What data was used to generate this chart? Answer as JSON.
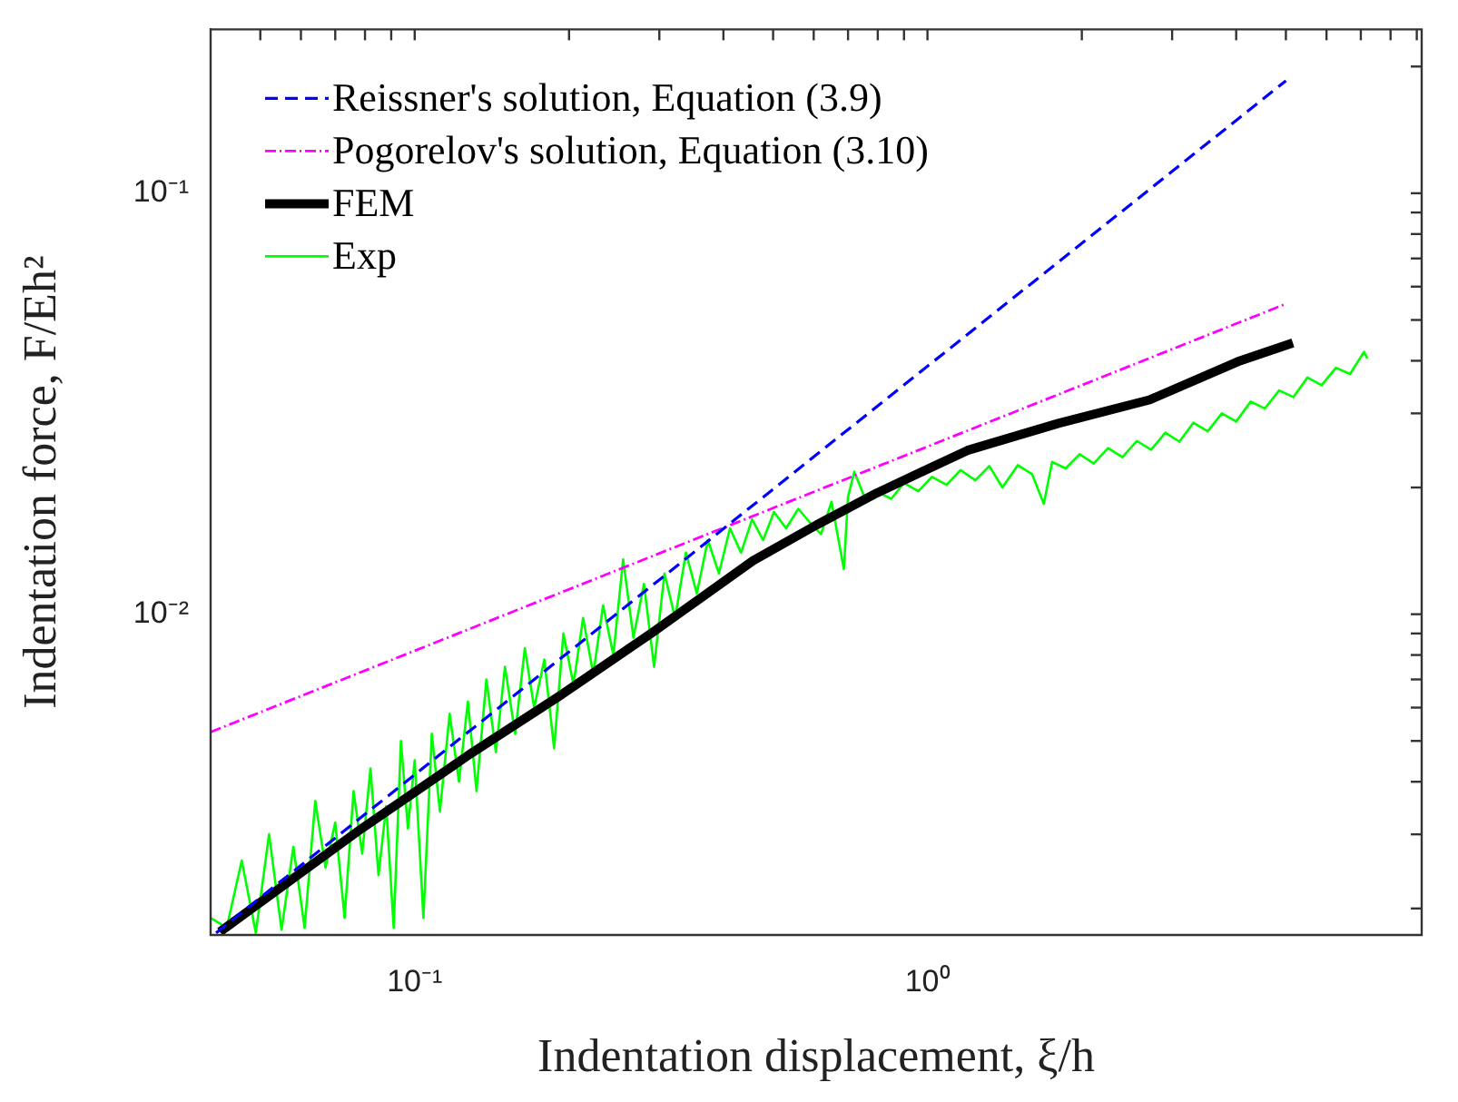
{
  "chart_data": {
    "type": "line",
    "xlabel": "Indentation displacement, ξ/h",
    "ylabel": "Indentation force, F/Eh²",
    "log": "xy",
    "grid": false,
    "legend": "top left",
    "marker": "none",
    "xlim": [
      0.04,
      9.2
    ],
    "ylim": [
      0.00173,
      0.245
    ],
    "xticks": [
      {
        "value": 0.05,
        "label": null
      },
      {
        "value": 0.06,
        "label": null
      },
      {
        "value": 0.07,
        "label": null
      },
      {
        "value": 0.08,
        "label": null
      },
      {
        "value": 0.09,
        "label": null
      },
      {
        "value": 0.1,
        "label": "10⁻¹"
      },
      {
        "value": 0.2,
        "label": null
      },
      {
        "value": 0.3,
        "label": null
      },
      {
        "value": 0.4,
        "label": null
      },
      {
        "value": 0.5,
        "label": null
      },
      {
        "value": 0.6,
        "label": null
      },
      {
        "value": 0.7,
        "label": null
      },
      {
        "value": 0.8,
        "label": null
      },
      {
        "value": 0.9,
        "label": null
      },
      {
        "value": 1,
        "label": "10⁰"
      },
      {
        "value": 2,
        "label": null
      },
      {
        "value": 3,
        "label": null
      },
      {
        "value": 4,
        "label": null
      },
      {
        "value": 5,
        "label": null
      },
      {
        "value": 6,
        "label": null
      },
      {
        "value": 7,
        "label": null
      },
      {
        "value": 8,
        "label": null
      },
      {
        "value": 9,
        "label": null
      }
    ],
    "yticks": [
      {
        "value": 0.002,
        "label": null
      },
      {
        "value": 0.003,
        "label": null
      },
      {
        "value": 0.004,
        "label": null
      },
      {
        "value": 0.005,
        "label": null
      },
      {
        "value": 0.006,
        "label": null
      },
      {
        "value": 0.007,
        "label": null
      },
      {
        "value": 0.008,
        "label": null
      },
      {
        "value": 0.009,
        "label": null
      },
      {
        "value": 0.01,
        "label": "10⁻²"
      },
      {
        "value": 0.02,
        "label": null
      },
      {
        "value": 0.03,
        "label": null
      },
      {
        "value": 0.04,
        "label": null
      },
      {
        "value": 0.05,
        "label": null
      },
      {
        "value": 0.06,
        "label": null
      },
      {
        "value": 0.07,
        "label": null
      },
      {
        "value": 0.08,
        "label": null
      },
      {
        "value": 0.09,
        "label": null
      },
      {
        "value": 0.1,
        "label": "10⁻¹"
      },
      {
        "value": 0.2,
        "label": null
      }
    ],
    "series": [
      {
        "name": "Reissner's solution, Equation (3.9)",
        "color": "#0000ff",
        "line_style": "dashed",
        "x": [
          0.041,
          5.0
        ],
        "values": [
          0.00175,
          0.185
        ]
      },
      {
        "name": "Pogorelov's solution, Equation (3.10)",
        "color": "#ff00ff",
        "line_style": "dashdot",
        "x": [
          0.04,
          5.0
        ],
        "values": [
          0.00525,
          0.0546
        ]
      },
      {
        "name": "FEM",
        "color": "#000000",
        "line_style": "solid",
        "x": [
          0.0417,
          0.0789,
          0.1288,
          0.1937,
          0.2915,
          0.457,
          0.608,
          0.796,
          1.197,
          1.8,
          2.71,
          4.07,
          5.16
        ],
        "values": [
          0.00176,
          0.0031,
          0.00467,
          0.00645,
          0.00907,
          0.0134,
          0.0163,
          0.0194,
          0.0245,
          0.0284,
          0.0323,
          0.04,
          0.0441
        ]
      },
      {
        "name": "Exp",
        "color": "#00ff00",
        "line_style": "solid",
        "x": [
          0.04,
          0.043,
          0.046,
          0.049,
          0.052,
          0.055,
          0.058,
          0.061,
          0.064,
          0.067,
          0.07,
          0.073,
          0.076,
          0.079,
          0.082,
          0.085,
          0.088,
          0.091,
          0.094,
          0.097,
          0.1,
          0.104,
          0.108,
          0.112,
          0.117,
          0.122,
          0.127,
          0.132,
          0.138,
          0.144,
          0.15,
          0.157,
          0.164,
          0.171,
          0.179,
          0.187,
          0.195,
          0.204,
          0.213,
          0.223,
          0.233,
          0.244,
          0.255,
          0.267,
          0.28,
          0.293,
          0.307,
          0.322,
          0.338,
          0.355,
          0.373,
          0.392,
          0.412,
          0.433,
          0.455,
          0.478,
          0.502,
          0.53,
          0.56,
          0.59,
          0.62,
          0.65,
          0.687,
          0.7,
          0.72,
          0.76,
          0.8,
          0.85,
          0.9,
          0.96,
          1.02,
          1.09,
          1.16,
          1.24,
          1.32,
          1.4,
          1.5,
          1.6,
          1.686,
          1.75,
          1.86,
          1.98,
          2.11,
          2.25,
          2.4,
          2.56,
          2.73,
          2.91,
          3.1,
          3.3,
          3.52,
          3.75,
          4.0,
          4.27,
          4.55,
          4.85,
          5.17,
          5.51,
          5.87,
          6.26,
          6.67,
          7.1,
          7.21
        ],
        "values": [
          0.0019,
          0.0018,
          0.0026,
          0.00175,
          0.003,
          0.00178,
          0.0028,
          0.0018,
          0.0036,
          0.0025,
          0.0032,
          0.0019,
          0.0038,
          0.0027,
          0.0043,
          0.0024,
          0.0035,
          0.0018,
          0.005,
          0.0031,
          0.0045,
          0.0019,
          0.0052,
          0.0034,
          0.0058,
          0.004,
          0.0062,
          0.0038,
          0.007,
          0.0047,
          0.0075,
          0.0052,
          0.0083,
          0.006,
          0.0078,
          0.0048,
          0.009,
          0.0068,
          0.0098,
          0.0072,
          0.0105,
          0.008,
          0.0135,
          0.0088,
          0.0118,
          0.0075,
          0.0125,
          0.0098,
          0.014,
          0.0112,
          0.015,
          0.0125,
          0.016,
          0.014,
          0.0168,
          0.015,
          0.0175,
          0.016,
          0.0178,
          0.0165,
          0.0155,
          0.0185,
          0.0128,
          0.019,
          0.0218,
          0.0185,
          0.0195,
          0.0188,
          0.0205,
          0.0196,
          0.0212,
          0.0203,
          0.022,
          0.0208,
          0.0225,
          0.02,
          0.0226,
          0.0215,
          0.0183,
          0.023,
          0.0222,
          0.024,
          0.0228,
          0.0248,
          0.0236,
          0.0258,
          0.0246,
          0.027,
          0.0257,
          0.0285,
          0.0272,
          0.03,
          0.0287,
          0.032,
          0.0308,
          0.034,
          0.0328,
          0.0365,
          0.035,
          0.0385,
          0.0372,
          0.042,
          0.0405
        ]
      }
    ]
  }
}
